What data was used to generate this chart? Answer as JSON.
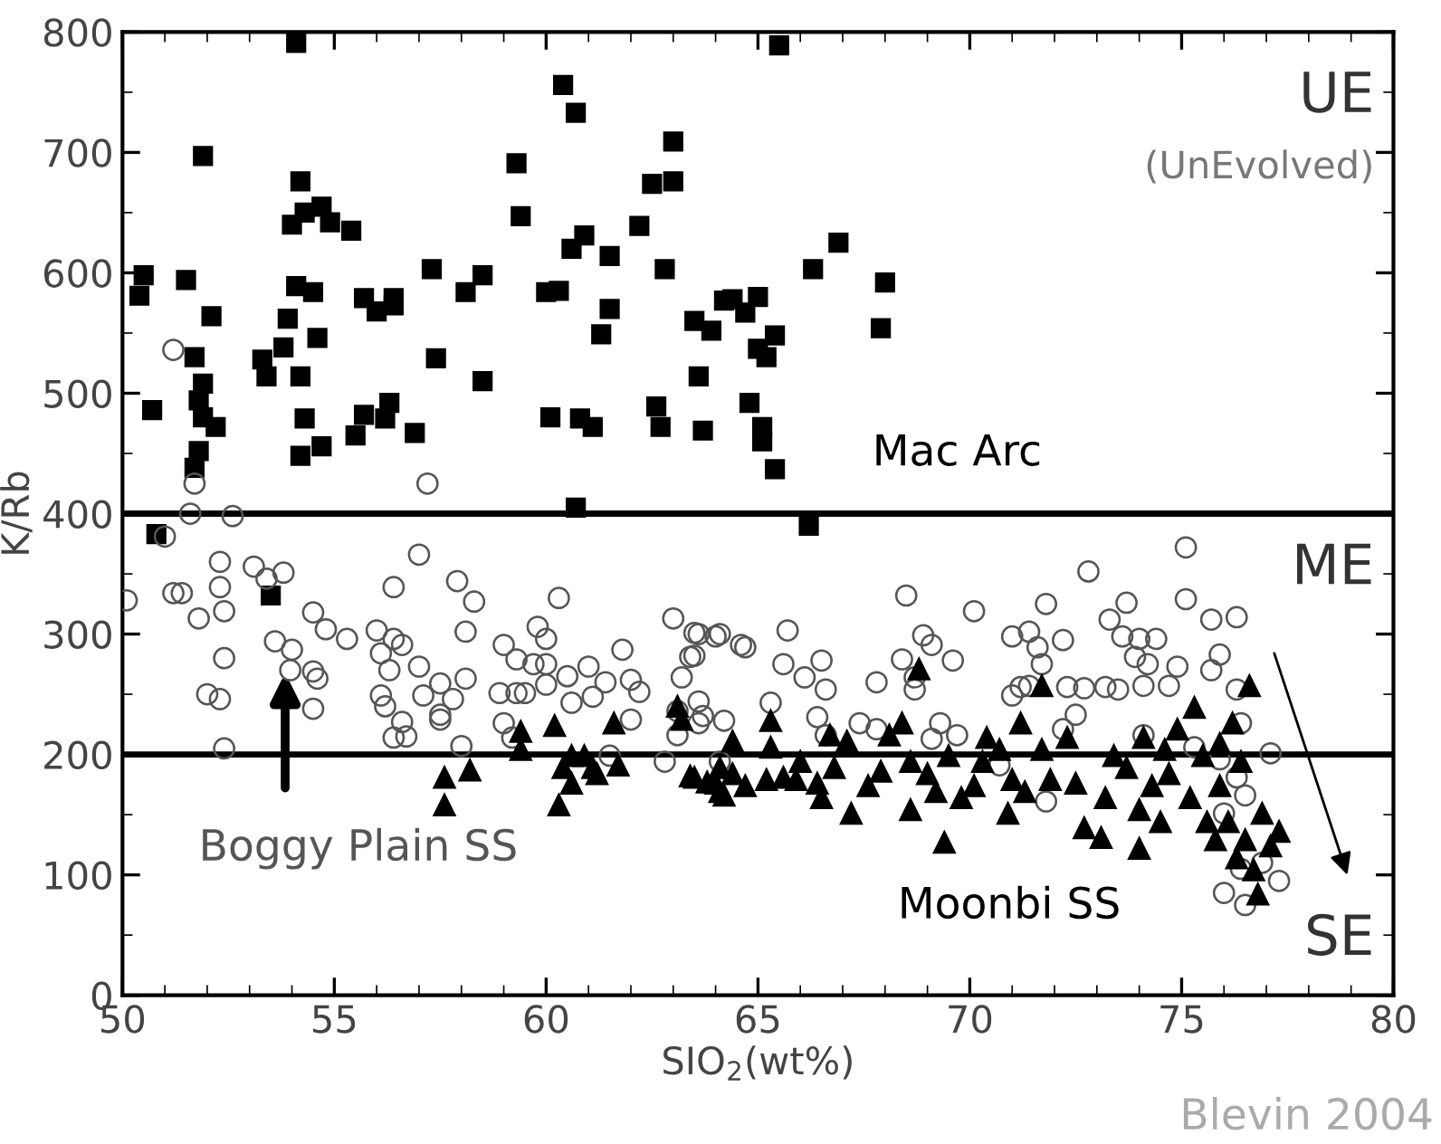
{
  "chart_data": {
    "type": "scatter",
    "xlabel": "SIO$_{2}$(wt%)",
    "ylabel": "K/Rb",
    "xlim": [
      50,
      80
    ],
    "xticks": [
      50,
      55,
      60,
      65,
      70,
      75,
      80
    ],
    "ylim": [
      0,
      800
    ],
    "yticks": [
      0,
      100,
      200,
      300,
      400,
      500,
      600,
      700,
      800
    ],
    "grid": false,
    "legend": false,
    "ref_lines": [
      {
        "axis": "y",
        "value": 400,
        "color": "#000000"
      },
      {
        "axis": "y",
        "value": 200,
        "color": "#000000"
      }
    ],
    "annotations": [
      "UE",
      "(UnEvolved)",
      "ME",
      "SE",
      "Blevin 2004"
    ],
    "series": [
      {
        "name": "Mac Arc",
        "color": "#000000",
        "marker": "square",
        "x": [
          54.1,
          50.5,
          50.4,
          50.7,
          51.5,
          51.9,
          52.1,
          51.7,
          51.9,
          51.8,
          51.9,
          52.2,
          51.8,
          51.7,
          53.3,
          53.4,
          53.9,
          53.8,
          54.0,
          54.2,
          54.3,
          54.7,
          54.9,
          55.4,
          54.1,
          54.5,
          54.6,
          54.2,
          54.3,
          54.2,
          54.7,
          55.5,
          55.7,
          55.7,
          56.0,
          56.4,
          56.4,
          56.3,
          56.2,
          56.9,
          57.3,
          57.4,
          58.1,
          58.5,
          58.5,
          59.3,
          59.4,
          60.0,
          60.3,
          60.1,
          60.4,
          60.7,
          60.6,
          60.9,
          60.8,
          61.1,
          60.7,
          61.5,
          61.5,
          61.3,
          62.2,
          62.5,
          63.0,
          63.0,
          62.8,
          62.6,
          62.7,
          63.5,
          63.9,
          63.6,
          63.7,
          64.2,
          65.5,
          66.3,
          66.9,
          68.0,
          67.9,
          64.4,
          65.0,
          64.7,
          65.4,
          65.0,
          65.2,
          64.8,
          65.1,
          65.1,
          65.4,
          66.2,
          50.8,
          53.5
        ],
        "values": [
          791,
          598,
          581,
          486,
          594,
          697,
          564,
          530,
          508,
          494,
          480,
          472,
          452,
          438,
          528,
          514,
          562,
          538,
          640,
          676,
          650,
          655,
          642,
          635,
          589,
          584,
          546,
          514,
          479,
          448,
          456,
          465,
          482,
          579,
          568,
          579,
          573,
          492,
          479,
          467,
          603,
          529,
          584,
          598,
          510,
          691,
          647,
          584,
          585,
          480,
          756,
          733,
          620,
          631,
          479,
          472,
          405,
          614,
          570,
          549,
          639,
          674,
          676,
          709,
          603,
          489,
          472,
          560,
          552,
          514,
          469,
          577,
          789,
          603,
          625,
          592,
          554,
          578,
          580,
          567,
          548,
          537,
          530,
          492,
          472,
          460,
          437,
          390,
          383,
          332
        ]
      },
      {
        "name": "Boggy Plain SS",
        "color": "#555555",
        "marker": "circle",
        "x": [
          50.1,
          51.0,
          51.6,
          52.6,
          51.2,
          51.4,
          51.8,
          52.3,
          52.3,
          52.4,
          52.4,
          52.0,
          52.3,
          52.4,
          53.1,
          53.4,
          53.8,
          53.6,
          54.0,
          53.96,
          54.5,
          54.6,
          54.5,
          54.5,
          54.8,
          55.3,
          56.0,
          56.4,
          56.4,
          56.6,
          56.1,
          56.3,
          56.1,
          56.2,
          56.4,
          56.7,
          56.6,
          57.0,
          57.0,
          57.1,
          57.5,
          57.5,
          57.9,
          58.3,
          58.1,
          58.1,
          58.0,
          57.5,
          57.8,
          59.0,
          59.3,
          58.9,
          59.3,
          59.5,
          59.0,
          59.2,
          59.8,
          60.0,
          60.3,
          59.7,
          60.0,
          60.0,
          60.5,
          60.6,
          61.0,
          61.1,
          61.4,
          61.8,
          62.0,
          62.2,
          62.0,
          61.5,
          62.8,
          63.0,
          63.6,
          64.1,
          63.5,
          63.2,
          63.6,
          63.7,
          63.1,
          64.1,
          75.1,
          72.8,
          68.5,
          70.1,
          71.8,
          73.7,
          75.1,
          75.7,
          76.3,
          63.5,
          64.0,
          64.6,
          64.7,
          65.7,
          63.4,
          65.6,
          66.5,
          66.1,
          66.6,
          67.8,
          68.4,
          68.9,
          69.1,
          69.6,
          68.7,
          68.7,
          71.0,
          71.4,
          71.6,
          71.7,
          72.2,
          73.3,
          73.6,
          74.0,
          74.4,
          73.9,
          74.2,
          74.9,
          75.9,
          75.7,
          71.0,
          71.2,
          71.4,
          72.3,
          72.7,
          73.2,
          73.5,
          74.1,
          74.7,
          76.3,
          72.5,
          72.2,
          69.3,
          69.7,
          69.1,
          67.8,
          66.4,
          66.6,
          67.4,
          64.2,
          63.6,
          65.3,
          63.1,
          76.4,
          77.1,
          76.3,
          76.5,
          76.0,
          76.9,
          77.3,
          76.0,
          76.5,
          76.4,
          71.8,
          70.7,
          74.1,
          75.3,
          75.9,
          51.2,
          51.7,
          57.2
        ],
        "values": [
          328,
          381,
          400,
          398,
          334,
          334,
          313,
          360,
          339,
          319,
          280,
          250,
          246,
          205,
          356,
          346,
          351,
          294,
          287,
          270,
          269,
          263,
          238,
          318,
          304,
          296,
          303,
          339,
          296,
          291,
          284,
          270,
          249,
          240,
          214,
          215,
          227,
          366,
          273,
          249,
          233,
          229,
          344,
          327,
          302,
          263,
          207,
          259,
          246,
          291,
          279,
          251,
          251,
          251,
          226,
          214,
          306,
          296,
          330,
          275,
          275,
          258,
          265,
          243,
          273,
          248,
          260,
          287,
          262,
          252,
          229,
          199,
          194,
          313,
          300,
          300,
          282,
          264,
          244,
          232,
          216,
          194,
          372,
          352,
          332,
          319,
          325,
          326,
          329,
          312,
          314,
          301,
          298,
          291,
          289,
          303,
          281,
          275,
          278,
          264,
          254,
          260,
          279,
          299,
          291,
          278,
          264,
          254,
          298,
          302,
          289,
          275,
          295,
          312,
          298,
          296,
          296,
          281,
          275,
          273,
          283,
          270,
          249,
          256,
          257,
          256,
          255,
          256,
          254,
          257,
          257,
          254,
          233,
          221,
          226,
          216,
          213,
          221,
          231,
          216,
          226,
          228,
          226,
          243,
          236,
          226,
          201,
          181,
          166,
          151,
          110,
          95,
          85,
          75,
          105,
          161,
          191,
          216,
          206,
          196,
          536,
          425,
          425
        ]
      },
      {
        "name": "Moonbi SS",
        "color": "#000000",
        "marker": "triangle",
        "x": [
          57.6,
          58.2,
          57.6,
          59.4,
          59.4,
          60.2,
          60.6,
          60.4,
          60.6,
          60.3,
          60.9,
          61.1,
          61.2,
          61.6,
          61.7,
          63.1,
          63.4,
          63.8,
          64.1,
          64.1,
          63.2,
          63.5,
          64.0,
          64.4,
          64.7,
          65.2,
          65.6,
          65.9,
          64.2,
          65.3,
          65.3,
          64.4,
          66.0,
          66.4,
          66.5,
          66.7,
          67.1,
          66.8,
          67.2,
          67.6,
          67.9,
          68.1,
          68.4,
          68.8,
          68.6,
          68.6,
          69.0,
          69.2,
          69.4,
          69.5,
          69.8,
          70.1,
          70.3,
          70.4,
          70.7,
          70.9,
          71.0,
          71.2,
          71.3,
          71.7,
          71.7,
          71.9,
          72.3,
          72.5,
          72.7,
          73.1,
          73.2,
          73.4,
          73.7,
          74.0,
          74.0,
          74.3,
          74.5,
          74.7,
          74.9,
          75.2,
          75.3,
          75.5,
          75.6,
          75.8,
          75.9,
          76.1,
          76.2,
          76.3,
          76.5,
          76.6,
          76.7,
          76.8,
          76.9,
          77.3,
          77.1,
          76.4,
          75.9,
          74.6,
          74.1
        ],
        "values": [
          181,
          187,
          158,
          219,
          204,
          224,
          199,
          189,
          176,
          158,
          199,
          189,
          184,
          226,
          191,
          240,
          182,
          177,
          169,
          189,
          229,
          181,
          176,
          184,
          174,
          179,
          181,
          179,
          166,
          228,
          206,
          211,
          194,
          176,
          164,
          216,
          211,
          189,
          151,
          174,
          186,
          216,
          226,
          271,
          154,
          194,
          184,
          169,
          127,
          199,
          164,
          174,
          194,
          214,
          204,
          151,
          179,
          226,
          169,
          257,
          204,
          179,
          214,
          176,
          139,
          131,
          164,
          199,
          189,
          122,
          154,
          174,
          144,
          184,
          221,
          164,
          239,
          199,
          144,
          129,
          174,
          144,
          226,
          114,
          129,
          257,
          104,
          84,
          151,
          136,
          124,
          194,
          209,
          204,
          214
        ]
      }
    ]
  }
}
